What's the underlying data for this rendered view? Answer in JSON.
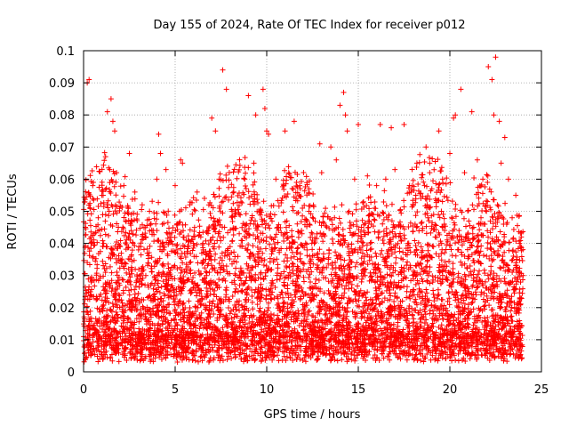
{
  "chart_data": {
    "type": "scatter",
    "title": "Day 155 of 2024, Rate Of TEC Index for receiver p012",
    "xlabel": "GPS time / hours",
    "ylabel": "ROTI / TECUs",
    "xlim": [
      0,
      25
    ],
    "ylim": [
      0,
      0.1
    ],
    "x_ticks": [
      "0",
      "5",
      "10",
      "15",
      "20",
      "25"
    ],
    "y_ticks": [
      "0",
      "0.01",
      "0.02",
      "0.03",
      "0.04",
      "0.05",
      "0.06",
      "0.07",
      "0.08",
      "0.09",
      "0.1"
    ],
    "grid": true,
    "marker": "+",
    "series_color": "#ff0000",
    "series": [
      {
        "x": [
          0.2,
          0.3,
          1.3,
          1.5,
          1.6,
          1.2,
          1.7,
          2.5,
          4.1,
          4.2,
          5.3,
          5.4,
          7.0,
          7.2,
          7.6,
          7.8,
          9.0,
          9.4,
          9.8,
          9.9,
          10.0,
          10.1,
          11.0,
          11.5,
          12.9,
          13.5,
          14.0,
          14.2,
          14.3,
          14.4,
          15.0,
          16.2,
          16.8,
          17.5,
          18.7,
          19.4,
          20.2,
          20.3,
          20.6,
          21.2,
          22.1,
          22.3,
          22.4,
          22.5,
          22.7,
          23.0,
          0.5,
          1.0,
          1.8,
          2.2,
          2.8,
          3.2,
          3.6,
          4.0,
          4.5,
          5.0,
          5.8,
          6.2,
          6.6,
          7.4,
          8.2,
          8.8,
          9.3,
          10.5,
          11.2,
          11.8,
          12.3,
          13.0,
          13.8,
          14.8,
          15.5,
          16.0,
          16.5,
          17.0,
          17.8,
          18.2,
          18.9,
          19.6,
          20.0,
          20.8,
          21.5,
          21.8,
          22.8,
          23.2,
          23.6,
          23.9,
          0.1,
          0.4,
          0.8,
          1.1,
          1.4,
          1.9,
          2.3,
          2.7,
          3.0,
          3.4,
          3.8,
          4.3,
          4.7,
          5.1,
          5.6,
          6.0,
          6.4,
          6.8,
          7.3,
          7.7,
          8.0,
          8.5,
          8.9,
          9.2,
          9.6,
          10.2,
          10.6,
          11.1,
          11.4,
          11.9,
          12.2,
          12.6,
          13.1,
          13.4,
          13.7,
          14.1,
          14.5,
          14.9,
          15.3,
          15.7,
          16.1,
          16.4,
          16.9,
          17.3,
          17.7,
          18.1,
          18.5,
          18.8,
          19.2,
          19.7,
          20.1,
          20.5,
          20.9,
          21.3,
          21.7,
          22.0,
          22.6,
          23.1,
          23.4,
          23.8,
          24.0
        ],
        "y": [
          0.09,
          0.091,
          0.081,
          0.085,
          0.078,
          0.067,
          0.075,
          0.068,
          0.074,
          0.068,
          0.066,
          0.065,
          0.079,
          0.075,
          0.094,
          0.088,
          0.086,
          0.08,
          0.088,
          0.082,
          0.075,
          0.074,
          0.075,
          0.078,
          0.071,
          0.07,
          0.083,
          0.087,
          0.08,
          0.075,
          0.077,
          0.077,
          0.076,
          0.077,
          0.07,
          0.075,
          0.079,
          0.08,
          0.088,
          0.081,
          0.095,
          0.091,
          0.08,
          0.098,
          0.078,
          0.073,
          0.058,
          0.055,
          0.062,
          0.058,
          0.056,
          0.052,
          0.05,
          0.06,
          0.063,
          0.058,
          0.052,
          0.056,
          0.054,
          0.06,
          0.056,
          0.06,
          0.065,
          0.06,
          0.062,
          0.058,
          0.057,
          0.062,
          0.066,
          0.06,
          0.061,
          0.058,
          0.06,
          0.063,
          0.058,
          0.065,
          0.062,
          0.06,
          0.068,
          0.062,
          0.066,
          0.06,
          0.065,
          0.06,
          0.055,
          0.042,
          0.045,
          0.042,
          0.048,
          0.04,
          0.05,
          0.045,
          0.047,
          0.04,
          0.038,
          0.042,
          0.044,
          0.046,
          0.043,
          0.038,
          0.041,
          0.04,
          0.042,
          0.044,
          0.047,
          0.045,
          0.039,
          0.043,
          0.046,
          0.048,
          0.05,
          0.042,
          0.045,
          0.047,
          0.04,
          0.044,
          0.038,
          0.04,
          0.043,
          0.038,
          0.048,
          0.052,
          0.05,
          0.047,
          0.044,
          0.046,
          0.042,
          0.04,
          0.045,
          0.042,
          0.04,
          0.046,
          0.044,
          0.048,
          0.042,
          0.046,
          0.048,
          0.044,
          0.042,
          0.045,
          0.048,
          0.05,
          0.052,
          0.046,
          0.048,
          0.04,
          0.03
        ]
      }
    ],
    "dense_band": {
      "description_note": "",
      "x_range": [
        0,
        24
      ],
      "y_floor_range": [
        0.003,
        0.012
      ],
      "y_peak_range": [
        0.02,
        0.06
      ]
    }
  }
}
